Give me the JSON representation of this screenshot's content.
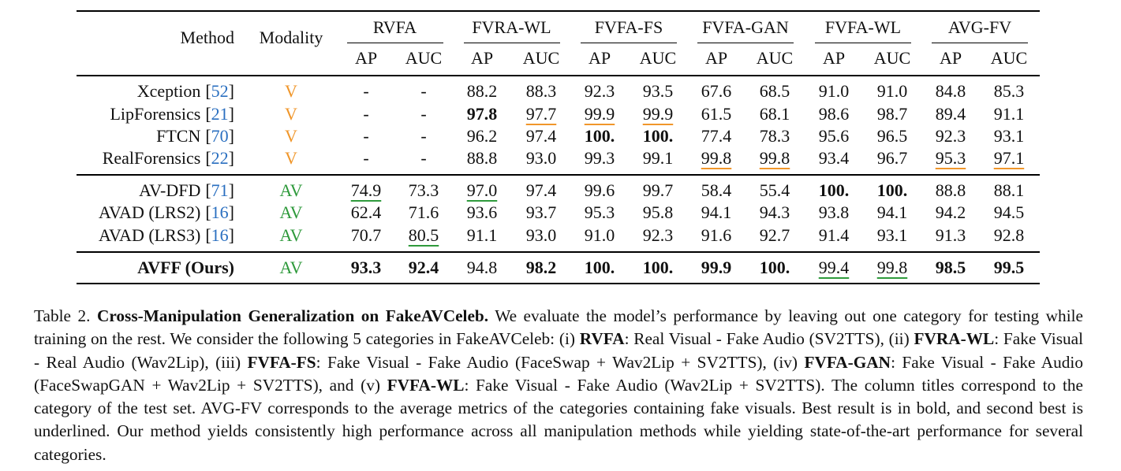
{
  "table": {
    "header": {
      "method": "Method",
      "modality": "Modality",
      "groups": [
        "RVFA",
        "FVRA-WL",
        "FVFA-FS",
        "FVFA-GAN",
        "FVFA-WL",
        "AVG-FV"
      ],
      "metrics": [
        "AP",
        "AUC"
      ]
    },
    "sections": [
      [
        {
          "method": "Xception",
          "cite": [
            "[",
            "52",
            "]"
          ],
          "modality": "V",
          "color": "#f0962a",
          "cells": [
            "-",
            "-",
            "88.2",
            "88.3",
            "92.3",
            "93.5",
            "67.6",
            "68.5",
            "91.0",
            "91.0",
            "84.8",
            "85.3"
          ]
        },
        {
          "method": "LipForensics",
          "cite": [
            "[",
            "21",
            "]"
          ],
          "modality": "V",
          "color": "#f0962a",
          "cells": [
            "-",
            "-",
            {
              "text": "97.8",
              "bold": true
            },
            {
              "text": "97.7",
              "underline": true
            },
            {
              "text": "99.9",
              "underline": true
            },
            {
              "text": "99.9",
              "underline": true
            },
            "61.5",
            "68.1",
            "98.6",
            "98.7",
            "89.4",
            "91.1"
          ]
        },
        {
          "method": "FTCN",
          "cite": [
            "[",
            "70",
            "]"
          ],
          "modality": "V",
          "color": "#f0962a",
          "cells": [
            "-",
            "-",
            "96.2",
            "97.4",
            {
              "text": "100.",
              "bold": true
            },
            {
              "text": "100.",
              "bold": true
            },
            "77.4",
            "78.3",
            "95.6",
            "96.5",
            "92.3",
            "93.1"
          ]
        },
        {
          "method": "RealForensics",
          "cite": [
            "[",
            "22",
            "]"
          ],
          "modality": "V",
          "color": "#f0962a",
          "cells": [
            "-",
            "-",
            "88.8",
            "93.0",
            "99.3",
            "99.1",
            {
              "text": "99.8",
              "underline": true
            },
            {
              "text": "99.8",
              "underline": true
            },
            "93.4",
            "96.7",
            {
              "text": "95.3",
              "underline": true
            },
            {
              "text": "97.1",
              "underline": true
            }
          ]
        }
      ],
      [
        {
          "method": "AV-DFD",
          "cite": [
            "[",
            "71",
            "]"
          ],
          "modality": "AV",
          "color": "#2f9a3c",
          "cells": [
            {
              "text": "74.9",
              "underline": true
            },
            "73.3",
            {
              "text": "97.0",
              "underline": true
            },
            "97.4",
            "99.6",
            "99.7",
            "58.4",
            "55.4",
            {
              "text": "100.",
              "bold": true
            },
            {
              "text": "100.",
              "bold": true
            },
            "88.8",
            "88.1"
          ]
        },
        {
          "method": "AVAD (LRS2)",
          "cite": [
            "[",
            "16",
            "]"
          ],
          "modality": "AV",
          "color": "#2f9a3c",
          "cells": [
            "62.4",
            "71.6",
            "93.6",
            "93.7",
            "95.3",
            "95.8",
            "94.1",
            "94.3",
            "93.8",
            "94.1",
            "94.2",
            "94.5"
          ]
        },
        {
          "method": "AVAD (LRS3)",
          "cite": [
            "[",
            "16",
            "]"
          ],
          "modality": "AV",
          "color": "#2f9a3c",
          "cells": [
            "70.7",
            {
              "text": "80.5",
              "underline": true
            },
            "91.1",
            "93.0",
            "91.0",
            "92.3",
            "91.6",
            "92.7",
            "91.4",
            "93.1",
            "91.3",
            "92.8"
          ]
        }
      ],
      [
        {
          "method": "AVFF (Ours)",
          "method_bold": true,
          "modality": "AV",
          "color": "#2f9a3c",
          "cells": [
            {
              "text": "93.3",
              "bold": true
            },
            {
              "text": "92.4",
              "bold": true
            },
            "94.8",
            {
              "text": "98.2",
              "bold": true
            },
            {
              "text": "100.",
              "bold": true
            },
            {
              "text": "100.",
              "bold": true
            },
            {
              "text": "99.9",
              "bold": true
            },
            {
              "text": "100.",
              "bold": true
            },
            {
              "text": "99.4",
              "underline": true
            },
            {
              "text": "99.8",
              "underline": true
            },
            {
              "text": "98.5",
              "bold": true
            },
            {
              "text": "99.5",
              "bold": true
            }
          ]
        }
      ]
    ]
  },
  "caption": [
    {
      "text": "Table 2. "
    },
    {
      "text": "Cross-Manipulation Generalization on FakeAVCeleb.",
      "bold": true
    },
    {
      "text": " We evaluate the model’s performance by leaving out one category for testing while training on the rest. We consider the following 5 categories in FakeAVCeleb: (i) "
    },
    {
      "text": "RVFA",
      "bold": true
    },
    {
      "text": ": Real Visual - Fake Audio (SV2TTS), (ii) "
    },
    {
      "text": "FVRA-WL",
      "bold": true
    },
    {
      "text": ": Fake Visual - Real Audio (Wav2Lip), (iii) "
    },
    {
      "text": "FVFA-FS",
      "bold": true
    },
    {
      "text": ": Fake Visual - Fake Audio (FaceSwap + Wav2Lip + SV2TTS), (iv) "
    },
    {
      "text": "FVFA-GAN",
      "bold": true
    },
    {
      "text": ": Fake Visual - Fake Audio (FaceSwapGAN + Wav2Lip + SV2TTS), and (v) "
    },
    {
      "text": "FVFA-WL",
      "bold": true
    },
    {
      "text": ": Fake Visual - Fake Audio (Wav2Lip + SV2TTS). The column titles correspond to the category of the test set. AVG-FV corresponds to the average metrics of the categories containing fake visuals. Best result is in bold, and second best is underlined. Our method yields consistently high performance across all manipulation methods while yielding state-of-the-art performance for several categories."
    }
  ]
}
